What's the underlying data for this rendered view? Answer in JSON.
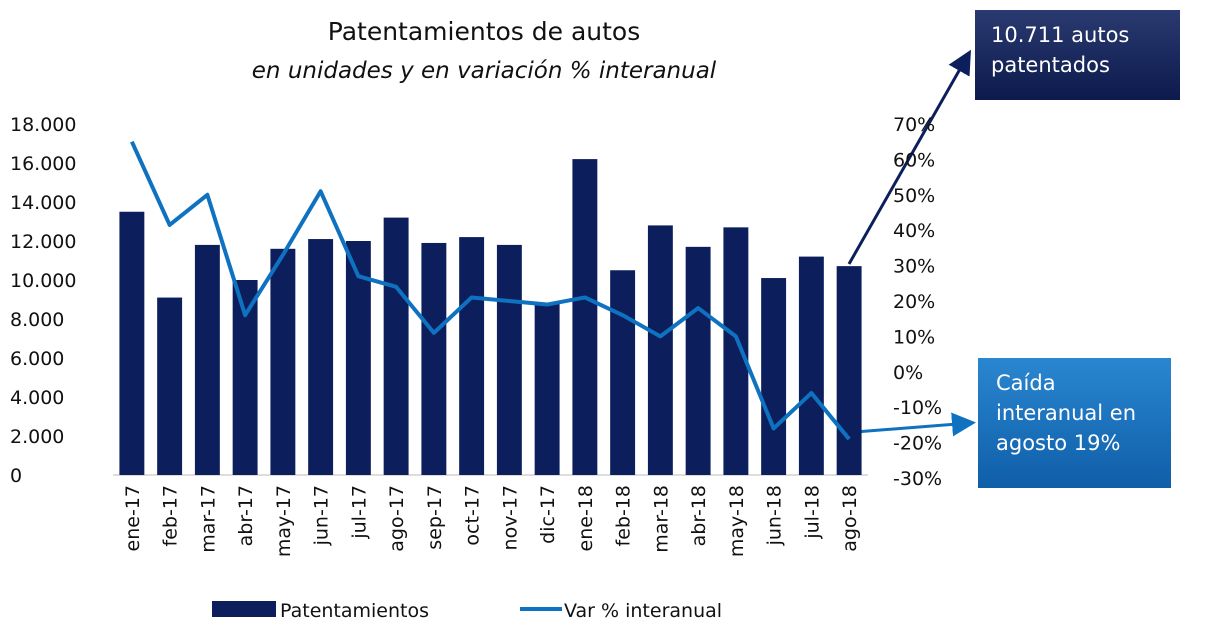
{
  "chart_data": {
    "type": "bar_line",
    "title": "Patentamientos de autos",
    "subtitle": "en unidades y en variación % interanual",
    "categories": [
      "ene-17",
      "feb-17",
      "mar-17",
      "abr-17",
      "may-17",
      "jun-17",
      "jul-17",
      "ago-17",
      "sep-17",
      "oct-17",
      "nov-17",
      "dic-17",
      "ene-18",
      "feb-18",
      "mar-18",
      "abr-18",
      "may-18",
      "jun-18",
      "jul-18",
      "ago-18"
    ],
    "series": [
      {
        "name": "Patentamientos",
        "color": "#0c1f5c",
        "values": [
          13500,
          9100,
          11800,
          10000,
          11600,
          12100,
          12000,
          13200,
          11900,
          12200,
          11800,
          8800,
          16200,
          10500,
          12800,
          11700,
          12700,
          10100,
          11200,
          10711
        ]
      },
      {
        "name": "Var % interanual",
        "color": "#0f72c0",
        "axis": "y2",
        "values": [
          65,
          41.5,
          50,
          16,
          33,
          51,
          27,
          24,
          11,
          21,
          20,
          19,
          21,
          16,
          10,
          18,
          10,
          -16,
          -6,
          -19
        ]
      }
    ],
    "ylim": [
      0,
      18000
    ],
    "yticks": [
      0,
      {
        "value": 2000,
        "label": "2.000"
      },
      {
        "value": 4000,
        "label": "4.000"
      },
      {
        "value": 6000,
        "label": "6.000"
      },
      {
        "value": 8000,
        "label": "8.000"
      },
      {
        "value": 10000,
        "label": "10.000"
      },
      {
        "value": 12000,
        "label": "12.000"
      },
      {
        "value": 14000,
        "label": "14.000"
      },
      {
        "value": 16000,
        "label": "16.000"
      },
      {
        "value": 18000,
        "label": "18.000"
      }
    ],
    "y2lim": [
      -30,
      70
    ],
    "y2ticks": [
      {
        "value": -30,
        "label": "-30%"
      },
      {
        "value": -20,
        "label": "-20%"
      },
      {
        "value": -10,
        "label": "-10%"
      },
      {
        "value": 0,
        "label": "0%"
      },
      {
        "value": 10,
        "label": "10%"
      },
      {
        "value": 20,
        "label": "20%"
      },
      {
        "value": 30,
        "label": "30%"
      },
      {
        "value": 40,
        "label": "40%"
      },
      {
        "value": 50,
        "label": "50%"
      },
      {
        "value": 60,
        "label": "60%"
      },
      {
        "value": 70,
        "label": "70%"
      }
    ],
    "annotations": [
      "10.711 autos patentados",
      "Caída interanual en agosto 19%"
    ]
  }
}
